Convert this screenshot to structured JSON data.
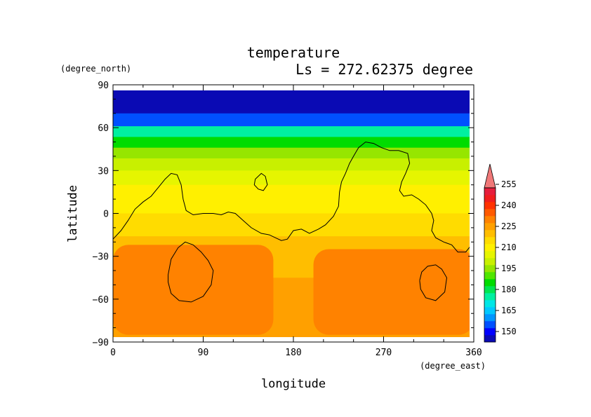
{
  "chart_data": {
    "type": "heatmap",
    "title": "temperature",
    "subtitle": "Ls = 272.62375 degree",
    "xlabel": "longitude",
    "ylabel": "latitude",
    "xunit": "(degree_east)",
    "yunit": "(degree_north)",
    "xlim": [
      0,
      360
    ],
    "ylim": [
      -90,
      90
    ],
    "x_ticks": [
      "0",
      "90",
      "180",
      "270",
      "360"
    ],
    "y_ticks": [
      "90",
      "60",
      "30",
      "0",
      "−30",
      "−60",
      "−90"
    ],
    "colorbar": {
      "levels": [
        145,
        150,
        155,
        160,
        165,
        170,
        175,
        180,
        185,
        190,
        195,
        200,
        205,
        210,
        215,
        220,
        225,
        230,
        235,
        240,
        245,
        250,
        255,
        260
      ],
      "tick_labels": [
        "150",
        "165",
        "180",
        "195",
        "210",
        "225",
        "240",
        "255"
      ],
      "colors": [
        "#0a0ab4",
        "#0000ff",
        "#0050ff",
        "#0096ff",
        "#00c8ff",
        "#00e6e6",
        "#00f0a0",
        "#00e650",
        "#00dc00",
        "#50e600",
        "#96e600",
        "#c8f000",
        "#e6f500",
        "#fff000",
        "#ffdc00",
        "#ffbe00",
        "#ffa000",
        "#ff8200",
        "#ff5a00",
        "#ff3200",
        "#f01e1e",
        "#e61e3c"
      ],
      "extend_max_color": "#f07878"
    },
    "temperature_by_latitude": [
      {
        "lat": 85,
        "value": 147
      },
      {
        "lat": 75,
        "value": 148
      },
      {
        "lat": 65,
        "value": 158
      },
      {
        "lat": 57,
        "value": 175
      },
      {
        "lat": 50,
        "value": 188
      },
      {
        "lat": 42,
        "value": 196
      },
      {
        "lat": 35,
        "value": 202
      },
      {
        "lat": 25,
        "value": 208
      },
      {
        "lat": 15,
        "value": 211
      },
      {
        "lat": 5,
        "value": 214
      },
      {
        "lat": -5,
        "value": 217
      },
      {
        "lat": -12,
        "value": 219
      },
      {
        "lat": -20,
        "value": 221
      },
      {
        "lat": -30,
        "value": 222
      },
      {
        "lat": -40,
        "value": 224
      },
      {
        "lat": -50,
        "value": 226
      },
      {
        "lat": -60,
        "value": 227
      },
      {
        "lat": -70,
        "value": 227
      },
      {
        "lat": -85,
        "value": 227
      }
    ],
    "warm_regions": [
      {
        "name": "",
        "lon_range": [
          0,
          160
        ],
        "lat_range": [
          -85,
          -22
        ],
        "value": 232
      },
      {
        "name": "",
        "lon_range": [
          200,
          360
        ],
        "lat_range": [
          -85,
          -25
        ],
        "value": 233
      }
    ],
    "contours": {
      "description": "topography outline lines (black)",
      "lines": [
        [
          [
            0,
            -18
          ],
          [
            8,
            -12
          ],
          [
            15,
            -5
          ],
          [
            22,
            3
          ],
          [
            30,
            8
          ],
          [
            38,
            12
          ],
          [
            45,
            18
          ],
          [
            52,
            24
          ],
          [
            58,
            28
          ],
          [
            64,
            27
          ],
          [
            68,
            20
          ],
          [
            70,
            10
          ],
          [
            73,
            2
          ],
          [
            80,
            -1
          ],
          [
            90,
            0
          ],
          [
            100,
            0
          ],
          [
            108,
            -1
          ],
          [
            115,
            1
          ],
          [
            122,
            0
          ],
          [
            130,
            -5
          ],
          [
            138,
            -10
          ],
          [
            148,
            -14
          ],
          [
            156,
            -15
          ],
          [
            162,
            -17
          ],
          [
            168,
            -19
          ],
          [
            174,
            -18
          ],
          [
            180,
            -12
          ],
          [
            188,
            -11
          ],
          [
            196,
            -14
          ],
          [
            205,
            -11
          ],
          [
            212,
            -8
          ],
          [
            220,
            -2
          ],
          [
            225,
            5
          ],
          [
            226,
            15
          ],
          [
            228,
            22
          ],
          [
            232,
            28
          ],
          [
            236,
            35
          ],
          [
            240,
            40
          ],
          [
            245,
            46
          ],
          [
            252,
            50
          ],
          [
            260,
            49
          ],
          [
            268,
            46
          ],
          [
            276,
            44
          ],
          [
            285,
            44
          ],
          [
            294,
            42
          ],
          [
            296,
            35
          ],
          [
            292,
            28
          ],
          [
            288,
            22
          ],
          [
            286,
            16
          ],
          [
            290,
            12
          ],
          [
            298,
            13
          ],
          [
            305,
            10
          ],
          [
            312,
            6
          ],
          [
            318,
            0
          ],
          [
            320,
            -5
          ],
          [
            318,
            -12
          ],
          [
            322,
            -17
          ],
          [
            330,
            -20
          ],
          [
            338,
            -22
          ],
          [
            344,
            -27
          ],
          [
            352,
            -27
          ],
          [
            360,
            -20
          ]
        ],
        [
          [
            142,
            24
          ],
          [
            148,
            28
          ],
          [
            152,
            26
          ],
          [
            154,
            20
          ],
          [
            150,
            16
          ],
          [
            145,
            17
          ],
          [
            141,
            20
          ],
          [
            142,
            24
          ]
        ],
        [
          [
            55,
            -43
          ],
          [
            58,
            -32
          ],
          [
            65,
            -24
          ],
          [
            72,
            -20
          ],
          [
            80,
            -22
          ],
          [
            88,
            -27
          ],
          [
            95,
            -33
          ],
          [
            100,
            -40
          ],
          [
            98,
            -50
          ],
          [
            90,
            -58
          ],
          [
            78,
            -62
          ],
          [
            66,
            -61
          ],
          [
            58,
            -56
          ],
          [
            55,
            -48
          ],
          [
            55,
            -43
          ]
        ],
        [
          [
            306,
            -47
          ],
          [
            308,
            -41
          ],
          [
            314,
            -37
          ],
          [
            322,
            -36
          ],
          [
            328,
            -39
          ],
          [
            333,
            -45
          ],
          [
            331,
            -55
          ],
          [
            322,
            -61
          ],
          [
            312,
            -59
          ],
          [
            307,
            -53
          ],
          [
            306,
            -47
          ]
        ]
      ]
    },
    "grid": false
  }
}
